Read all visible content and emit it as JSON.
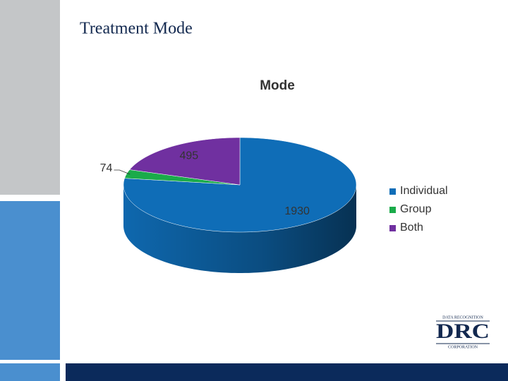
{
  "slide_title": "Treatment Mode",
  "logo": {
    "top": "DATA RECOGNITION",
    "main": "DRC",
    "bottom": "CORPORATION"
  },
  "chart_data": {
    "type": "pie",
    "title": "Mode",
    "categories": [
      "Individual",
      "Group",
      "Both"
    ],
    "values": [
      1930,
      74,
      495
    ],
    "colors": [
      "#0f6db7",
      "#1aab4a",
      "#7030a0"
    ],
    "legend": "right"
  }
}
